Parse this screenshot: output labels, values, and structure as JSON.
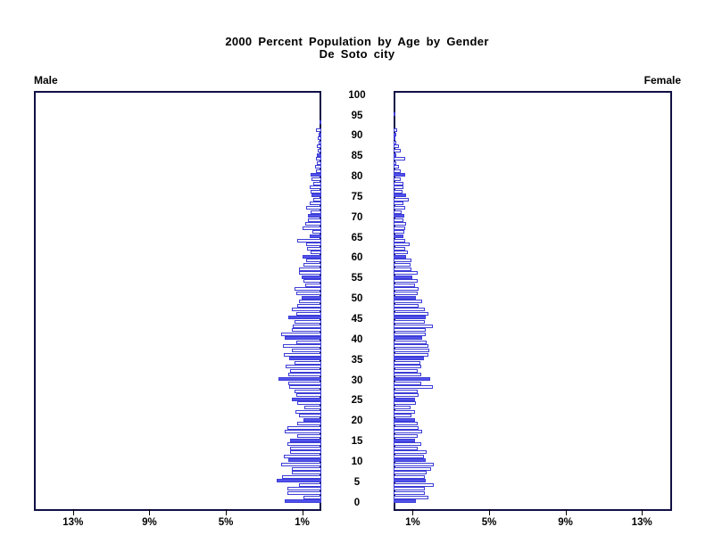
{
  "title": {
    "line1": "2000 Percent Population by Age by Gender",
    "line2": "De Soto city"
  },
  "side_labels": {
    "left": "Male",
    "right": "Female"
  },
  "colors": {
    "bar_fill": "#5252ec",
    "bar_outline": "#3d3dd6",
    "frame": "#101045",
    "axis": "#000000",
    "text": "#000000"
  },
  "chart_data": {
    "type": "bar",
    "subtype": "population-pyramid",
    "title": "2000 Percent Population by Age by Gender",
    "subtitle": "De Soto city",
    "x_unit": "percent of total population",
    "age_min": 0,
    "age_max": 100,
    "age_label_step": 5,
    "age_tick_labels": [
      "0",
      "5",
      "10",
      "15",
      "20",
      "25",
      "30",
      "35",
      "40",
      "45",
      "50",
      "55",
      "60",
      "65",
      "70",
      "75",
      "80",
      "85",
      "90",
      "95",
      "100"
    ],
    "x_axis_ticks_pct": [
      1,
      5,
      9,
      13
    ],
    "x_tick_labels": [
      "1%",
      "5%",
      "9%",
      "13%"
    ],
    "x_max_pct": 15,
    "filled_bar_rule": "bars for ages divisible by 5 are solid-filled; other single-year bars are hollow with blue outline",
    "legend_position": "none",
    "grid": false,
    "series": [
      {
        "name": "Male",
        "side": "left",
        "values": [
          1.9,
          0.95,
          1.8,
          1.8,
          1.15,
          2.35,
          2.05,
          1.55,
          1.55,
          2.1,
          1.75,
          1.95,
          1.65,
          1.65,
          1.8,
          1.65,
          1.25,
          1.9,
          1.8,
          1.25,
          0.95,
          1.15,
          1.35,
          0.9,
          1.25,
          1.55,
          1.3,
          1.4,
          1.7,
          1.75,
          2.25,
          1.75,
          1.65,
          1.85,
          1.4,
          1.7,
          1.95,
          1.55,
          2.0,
          1.3,
          1.9,
          2.1,
          1.55,
          1.5,
          1.4,
          1.75,
          1.3,
          1.55,
          1.25,
          1.15,
          1.05,
          1.3,
          1.4,
          0.85,
          0.95,
          1.05,
          1.15,
          1.15,
          0.95,
          0.8,
          1.0,
          0.55,
          0.75,
          0.8,
          1.25,
          0.6,
          0.45,
          1.0,
          0.85,
          0.7,
          0.7,
          0.55,
          0.8,
          0.6,
          0.4,
          0.5,
          0.55,
          0.6,
          0.4,
          0.5,
          0.55,
          0.3,
          0.35,
          0.25,
          0.3,
          0.25,
          0.2,
          0.25,
          0.15,
          0.2,
          0.12,
          0.27,
          0.0,
          0.08,
          0.0,
          0.0,
          0.0,
          0.0,
          0.0,
          0.0,
          0.0
        ]
      },
      {
        "name": "Female",
        "side": "right",
        "values": [
          1.15,
          1.8,
          1.65,
          1.65,
          2.1,
          1.7,
          1.65,
          1.75,
          1.95,
          2.1,
          1.7,
          1.6,
          1.75,
          1.25,
          1.45,
          1.1,
          1.25,
          1.5,
          1.3,
          1.25,
          1.1,
          0.95,
          1.1,
          0.9,
          1.15,
          1.1,
          1.3,
          1.25,
          2.05,
          1.45,
          1.9,
          1.45,
          1.25,
          1.45,
          1.4,
          1.6,
          1.8,
          1.85,
          1.8,
          1.75,
          1.5,
          1.7,
          1.7,
          2.05,
          1.65,
          1.7,
          1.8,
          1.65,
          1.3,
          1.5,
          1.15,
          1.25,
          1.3,
          1.1,
          1.25,
          1.0,
          1.25,
          0.95,
          0.9,
          0.95,
          0.65,
          0.75,
          0.6,
          0.85,
          0.6,
          0.5,
          0.55,
          0.6,
          0.65,
          0.5,
          0.55,
          0.4,
          0.6,
          0.5,
          0.8,
          0.65,
          0.45,
          0.5,
          0.5,
          0.35,
          0.6,
          0.35,
          0.3,
          0.15,
          0.6,
          0.15,
          0.35,
          0.3,
          0.15,
          0.1,
          0.15,
          0.2,
          0.0,
          0.0,
          0.0,
          0.08,
          0.0,
          0.0,
          0.0,
          0.0,
          0.0
        ]
      }
    ]
  }
}
